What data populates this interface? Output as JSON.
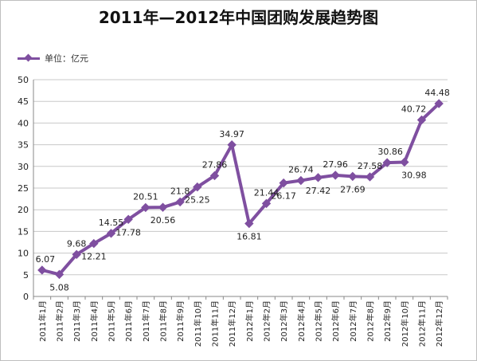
{
  "chart_data": {
    "type": "line",
    "title": "2011年—2012年中国团购发展趋势图",
    "legend": {
      "label": "单位：亿元",
      "placement": "top-left"
    },
    "categories": [
      "2011年1月",
      "2011年2月",
      "2011年3月",
      "2011年4月",
      "2011年5月",
      "2011年6月",
      "2011年7月",
      "2011年8月",
      "2011年9月",
      "2011年10月",
      "2011年11月",
      "2011年12月",
      "2012年1月",
      "2012年2月",
      "2012年3月",
      "2012年4月",
      "2012年5月",
      "2012年6月",
      "2012年7月",
      "2012年8月",
      "2012年9月",
      "2012年10月",
      "2012年11月",
      "2012年12月"
    ],
    "series": [
      {
        "name": "单位：亿元",
        "values": [
          6.07,
          5.08,
          9.68,
          12.21,
          14.55,
          17.78,
          20.51,
          20.56,
          21.8,
          25.25,
          27.86,
          34.97,
          16.81,
          21.44,
          26.17,
          26.74,
          27.42,
          27.96,
          27.69,
          27.58,
          30.86,
          30.98,
          40.72,
          44.48
        ]
      }
    ],
    "ylim": [
      0,
      50
    ],
    "yticks": [
      0,
      5,
      10,
      15,
      20,
      25,
      30,
      35,
      40,
      45,
      50
    ],
    "grid": true,
    "color": "#7f4fa0"
  }
}
